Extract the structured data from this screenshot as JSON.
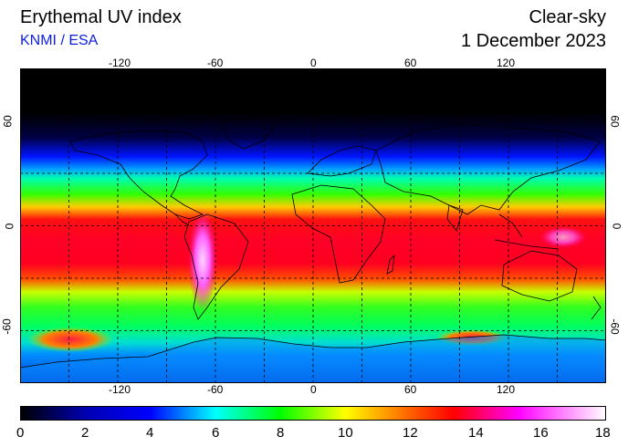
{
  "header": {
    "title": "Erythemal UV index",
    "subtitle": "KNMI / ESA",
    "condition": "Clear-sky",
    "date": "1 December 2023"
  },
  "map": {
    "projection": "equirectangular",
    "lon_range": [
      -180,
      180
    ],
    "lat_range": [
      -90,
      90
    ],
    "lon_ticks": [
      "-120",
      "-60",
      "0",
      "60",
      "120"
    ],
    "lat_ticks": [
      "60",
      "0",
      "-60"
    ],
    "lat_ticks_right": [
      "60",
      "0",
      "-60"
    ],
    "gridlines": "dashed every 30 degrees"
  },
  "colorbar": {
    "labels": [
      "0",
      "2",
      "4",
      "6",
      "8",
      "10",
      "12",
      "14",
      "16",
      "18"
    ],
    "min": 0,
    "max": 18,
    "colors": [
      "#000000",
      "#0000ff",
      "#00ffff",
      "#00ff00",
      "#ffff00",
      "#ff0000",
      "#ff00ff",
      "#ffffff"
    ]
  }
}
